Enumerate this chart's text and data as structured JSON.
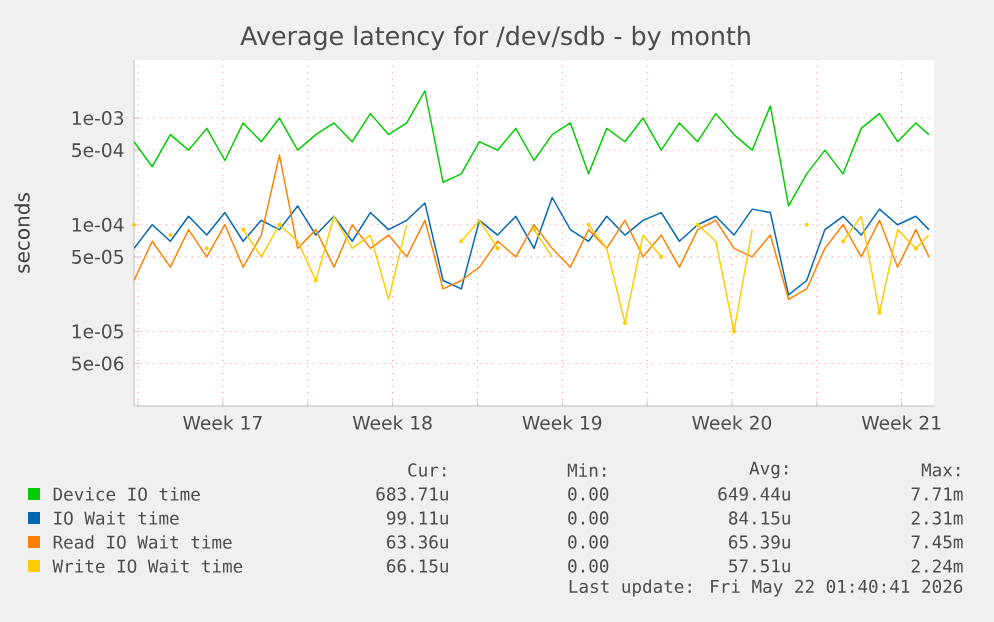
{
  "chart_data": {
    "type": "line",
    "title": "Average latency for /dev/sdb - by month",
    "ylabel": "seconds",
    "x": [
      "2026-04-19T20:00",
      "2026-04-20T14:00",
      "2026-04-21T08:00",
      "2026-04-22T02:00",
      "2026-04-22T20:00",
      "2026-04-23T14:00",
      "2026-04-24T08:00",
      "2026-04-25T02:00",
      "2026-04-25T20:00",
      "2026-04-26T14:00",
      "2026-04-27T08:00",
      "2026-04-28T02:00",
      "2026-04-28T20:00",
      "2026-04-29T14:00",
      "2026-04-30T08:00",
      "2026-05-01T02:00",
      "2026-05-01T20:00",
      "2026-05-02T14:00",
      "2026-05-03T08:00",
      "2026-05-04T02:00",
      "2026-05-04T20:00",
      "2026-05-05T14:00",
      "2026-05-06T08:00",
      "2026-05-07T02:00",
      "2026-05-07T20:00",
      "2026-05-08T14:00",
      "2026-05-09T08:00",
      "2026-05-10T02:00",
      "2026-05-10T20:00",
      "2026-05-11T14:00",
      "2026-05-12T08:00",
      "2026-05-13T02:00",
      "2026-05-13T20:00",
      "2026-05-14T14:00",
      "2026-05-15T08:00",
      "2026-05-16T02:00",
      "2026-05-16T20:00",
      "2026-05-17T14:00",
      "2026-05-18T08:00",
      "2026-05-19T02:00",
      "2026-05-19T20:00",
      "2026-05-20T14:00",
      "2026-05-21T08:00",
      "2026-05-22T02:00",
      "2026-05-22T15:00"
    ],
    "series": [
      {
        "name": "Device IO time",
        "color": "#00cc00",
        "values": [
          0.0006,
          0.00035,
          0.0007,
          0.0005,
          0.0008,
          0.0004,
          0.0009,
          0.0006,
          0.001,
          0.0005,
          0.0007,
          0.0009,
          0.0006,
          0.0011,
          0.0007,
          0.0009,
          0.0018,
          0.00025,
          0.0003,
          0.0006,
          0.0005,
          0.0008,
          0.0004,
          0.0007,
          0.0009,
          0.0003,
          0.0008,
          0.0006,
          0.001,
          0.0005,
          0.0009,
          0.0006,
          0.0011,
          0.0007,
          0.0005,
          0.0013,
          0.00015,
          0.0003,
          0.0005,
          0.0003,
          0.0008,
          0.0011,
          0.0006,
          0.0009,
          0.0007
        ]
      },
      {
        "name": "IO Wait time",
        "color": "#0066b3",
        "values": [
          6e-05,
          0.0001,
          7e-05,
          0.00012,
          8e-05,
          0.00013,
          7e-05,
          0.00011,
          9e-05,
          0.00015,
          8e-05,
          0.00012,
          7e-05,
          0.00013,
          9e-05,
          0.00011,
          0.00016,
          3e-05,
          2.5e-05,
          0.00011,
          8e-05,
          0.00012,
          6e-05,
          0.00018,
          9e-05,
          7e-05,
          0.00012,
          8e-05,
          0.00011,
          0.00013,
          7e-05,
          0.0001,
          0.00012,
          8e-05,
          0.00014,
          0.00013,
          2.2e-05,
          3e-05,
          9e-05,
          0.00012,
          8e-05,
          0.00014,
          0.0001,
          0.00012,
          9e-05
        ]
      },
      {
        "name": "Read IO Wait time",
        "color": "#ff8000",
        "values": [
          3e-05,
          7e-05,
          4e-05,
          9e-05,
          5e-05,
          0.0001,
          4e-05,
          8e-05,
          0.00045,
          6e-05,
          9e-05,
          4e-05,
          0.0001,
          6e-05,
          8e-05,
          5e-05,
          0.00011,
          2.5e-05,
          3e-05,
          4e-05,
          7e-05,
          5e-05,
          0.0001,
          6e-05,
          4e-05,
          9e-05,
          6e-05,
          0.00011,
          5e-05,
          8e-05,
          4e-05,
          9e-05,
          0.00011,
          6e-05,
          5e-05,
          8e-05,
          2e-05,
          2.5e-05,
          6e-05,
          0.0001,
          5e-05,
          0.00011,
          4e-05,
          9e-05,
          5e-05
        ]
      },
      {
        "name": "Write IO Wait time",
        "color": "#ffcc00",
        "values": [
          0.0001,
          null,
          8e-05,
          null,
          6e-05,
          null,
          9e-05,
          5e-05,
          0.0001,
          7e-05,
          3e-05,
          0.00012,
          6e-05,
          8e-05,
          2e-05,
          0.0001,
          null,
          null,
          7e-05,
          0.00011,
          6e-05,
          null,
          9e-05,
          5e-05,
          null,
          0.0001,
          6e-05,
          1.2e-05,
          8e-05,
          5e-05,
          null,
          0.0001,
          7e-05,
          1e-05,
          9e-05,
          null,
          null,
          0.0001,
          null,
          7e-05,
          0.00012,
          1.5e-05,
          9e-05,
          6e-05,
          8e-05
        ]
      }
    ],
    "xlim": [
      "2026-04-19T20:00",
      "2026-05-22T20:00"
    ],
    "ylim": [
      2e-06,
      0.0035
    ],
    "log": true,
    "grid": true,
    "legend": "bottom",
    "xticks": [
      {
        "value": "2026-04-20",
        "label": null
      },
      {
        "value": "2026-04-23T12:00",
        "label": "Week 17"
      },
      {
        "value": "2026-04-27",
        "label": null
      },
      {
        "value": "2026-04-30T12:00",
        "label": "Week 18"
      },
      {
        "value": "2026-05-04",
        "label": null
      },
      {
        "value": "2026-05-07T12:00",
        "label": "Week 19"
      },
      {
        "value": "2026-05-11",
        "label": null
      },
      {
        "value": "2026-05-14T12:00",
        "label": "Week 20"
      },
      {
        "value": "2026-05-18",
        "label": null
      },
      {
        "value": "2026-05-21T12:00",
        "label": "Week 21"
      }
    ],
    "yticks": [
      {
        "value": 5e-06,
        "label": "5e-06"
      },
      {
        "value": 1e-05,
        "label": "1e-05"
      },
      {
        "value": 5e-05,
        "label": "5e-05"
      },
      {
        "value": 0.0001,
        "label": "1e-04"
      },
      {
        "value": 0.0005,
        "label": "5e-04"
      },
      {
        "value": 0.001,
        "label": "1e-03"
      }
    ],
    "annotations": [
      "Cur:",
      "Min:",
      "Avg:",
      "Max:",
      "683.71u",
      "0.00",
      "649.44u",
      "7.71m",
      "99.11u",
      "0.00",
      "84.15u",
      "2.31m",
      "63.36u",
      "0.00",
      "65.39u",
      "7.45m",
      "66.15u",
      "0.00",
      "57.51u",
      "2.24m",
      "Last update: Fri May 22 01:40:41 2026"
    ]
  }
}
